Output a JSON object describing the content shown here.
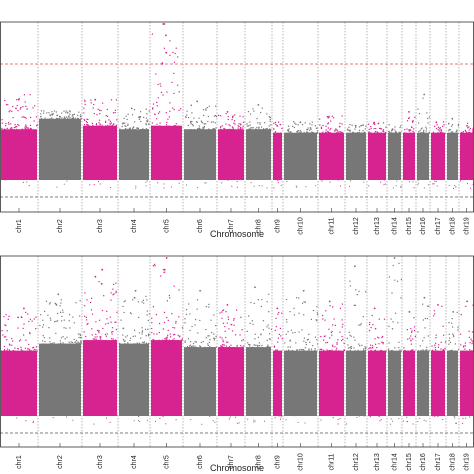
{
  "chart_data": [
    {
      "type": "scatter",
      "title": "",
      "xlabel": "Chromosome",
      "ylabel": "",
      "threshold_line": {
        "style": "dashed",
        "color": "#e05050"
      },
      "colors": {
        "odd": "#d6238f",
        "even": "#777777",
        "grid": "#555555",
        "threshold": "#e05050",
        "frame": "#333333"
      },
      "chromosomes": [
        {
          "label": "chr1",
          "peak": 0.52,
          "density": 0.28,
          "top_hits": [
            0.4,
            0.45
          ]
        },
        {
          "label": "chr2",
          "peak": 0.4,
          "density": 0.34,
          "top_hits": [
            0.36
          ]
        },
        {
          "label": "chr3",
          "peak": 0.5,
          "density": 0.3,
          "top_hits": [
            0.45
          ]
        },
        {
          "label": "chr4",
          "peak": 0.42,
          "density": 0.28,
          "top_hits": [
            0.4
          ]
        },
        {
          "label": "chr5",
          "peak": 0.98,
          "density": 0.3,
          "top_hits": [
            0.98,
            0.9,
            0.82,
            0.72,
            0.66
          ]
        },
        {
          "label": "chr6",
          "peak": 0.46,
          "density": 0.28,
          "top_hits": [
            0.44
          ]
        },
        {
          "label": "chr7",
          "peak": 0.4,
          "density": 0.28,
          "top_hits": [
            0.38
          ]
        },
        {
          "label": "chr8",
          "peak": 0.44,
          "density": 0.28,
          "top_hits": [
            0.42
          ]
        },
        {
          "label": "chr9",
          "peak": 0.36,
          "density": 0.26,
          "top_hits": [
            0.3
          ]
        },
        {
          "label": "chr10",
          "peak": 0.34,
          "density": 0.26,
          "top_hits": [
            0.32
          ]
        },
        {
          "label": "chr11",
          "peak": 0.38,
          "density": 0.26,
          "top_hits": [
            0.35
          ]
        },
        {
          "label": "chr12",
          "peak": 0.32,
          "density": 0.26,
          "top_hits": [
            0.3
          ]
        },
        {
          "label": "chr13",
          "peak": 0.34,
          "density": 0.26,
          "top_hits": [
            0.31
          ]
        },
        {
          "label": "chr14",
          "peak": 0.32,
          "density": 0.26,
          "top_hits": [
            0.28
          ]
        },
        {
          "label": "chr15",
          "peak": 0.4,
          "density": 0.26,
          "top_hits": [
            0.38
          ]
        },
        {
          "label": "chr16",
          "peak": 0.5,
          "density": 0.26,
          "top_hits": [
            0.48
          ]
        },
        {
          "label": "chr17",
          "peak": 0.34,
          "density": 0.26,
          "top_hits": [
            0.32
          ]
        },
        {
          "label": "chr18",
          "peak": 0.36,
          "density": 0.26,
          "top_hits": [
            0.34
          ]
        },
        {
          "label": "chr19",
          "peak": 0.34,
          "density": 0.26,
          "top_hits": [
            0.3
          ]
        }
      ]
    },
    {
      "type": "scatter",
      "title": "",
      "xlabel": "Chromosome",
      "ylabel": "",
      "colors": {
        "odd": "#d6238f",
        "even": "#777777",
        "grid": "#555555",
        "threshold": "#e05050",
        "frame": "#333333"
      },
      "chromosomes": [
        {
          "label": "chr1",
          "peak": 0.62,
          "density": 0.36,
          "top_hits": [
            0.6,
            0.55
          ]
        },
        {
          "label": "chr2",
          "peak": 0.7,
          "density": 0.4,
          "top_hits": [
            0.68,
            0.62
          ]
        },
        {
          "label": "chr3",
          "peak": 0.84,
          "density": 0.42,
          "top_hits": [
            0.82,
            0.78,
            0.74
          ]
        },
        {
          "label": "chr4",
          "peak": 0.72,
          "density": 0.4,
          "top_hits": [
            0.7,
            0.66
          ]
        },
        {
          "label": "chr5",
          "peak": 0.96,
          "density": 0.42,
          "top_hits": [
            0.96,
            0.82
          ]
        },
        {
          "label": "chr6",
          "peak": 0.72,
          "density": 0.38,
          "top_hits": [
            0.7
          ]
        },
        {
          "label": "chr7",
          "peak": 0.66,
          "density": 0.38,
          "top_hits": [
            0.62
          ]
        },
        {
          "label": "chr8",
          "peak": 0.74,
          "density": 0.38,
          "top_hits": [
            0.72
          ]
        },
        {
          "label": "chr9",
          "peak": 0.64,
          "density": 0.36,
          "top_hits": [
            0.6
          ]
        },
        {
          "label": "chr10",
          "peak": 0.72,
          "density": 0.36,
          "top_hits": [
            0.7
          ]
        },
        {
          "label": "chr11",
          "peak": 0.68,
          "density": 0.36,
          "top_hits": [
            0.64
          ]
        },
        {
          "label": "chr12",
          "peak": 0.86,
          "density": 0.36,
          "top_hits": [
            0.84
          ]
        },
        {
          "label": "chr13",
          "peak": 0.64,
          "density": 0.36,
          "top_hits": [
            0.6
          ]
        },
        {
          "label": "chr14",
          "peak": 0.96,
          "density": 0.36,
          "top_hits": [
            0.96
          ]
        },
        {
          "label": "chr15",
          "peak": 0.62,
          "density": 0.36,
          "top_hits": [
            0.58
          ]
        },
        {
          "label": "chr16",
          "peak": 0.7,
          "density": 0.36,
          "top_hits": [
            0.66
          ]
        },
        {
          "label": "chr17",
          "peak": 0.66,
          "density": 0.36,
          "top_hits": [
            0.62
          ]
        },
        {
          "label": "chr18",
          "peak": 0.62,
          "density": 0.36,
          "top_hits": [
            0.58
          ]
        },
        {
          "label": "chr19",
          "peak": 0.68,
          "density": 0.36,
          "top_hits": [
            0.64
          ]
        }
      ]
    }
  ]
}
